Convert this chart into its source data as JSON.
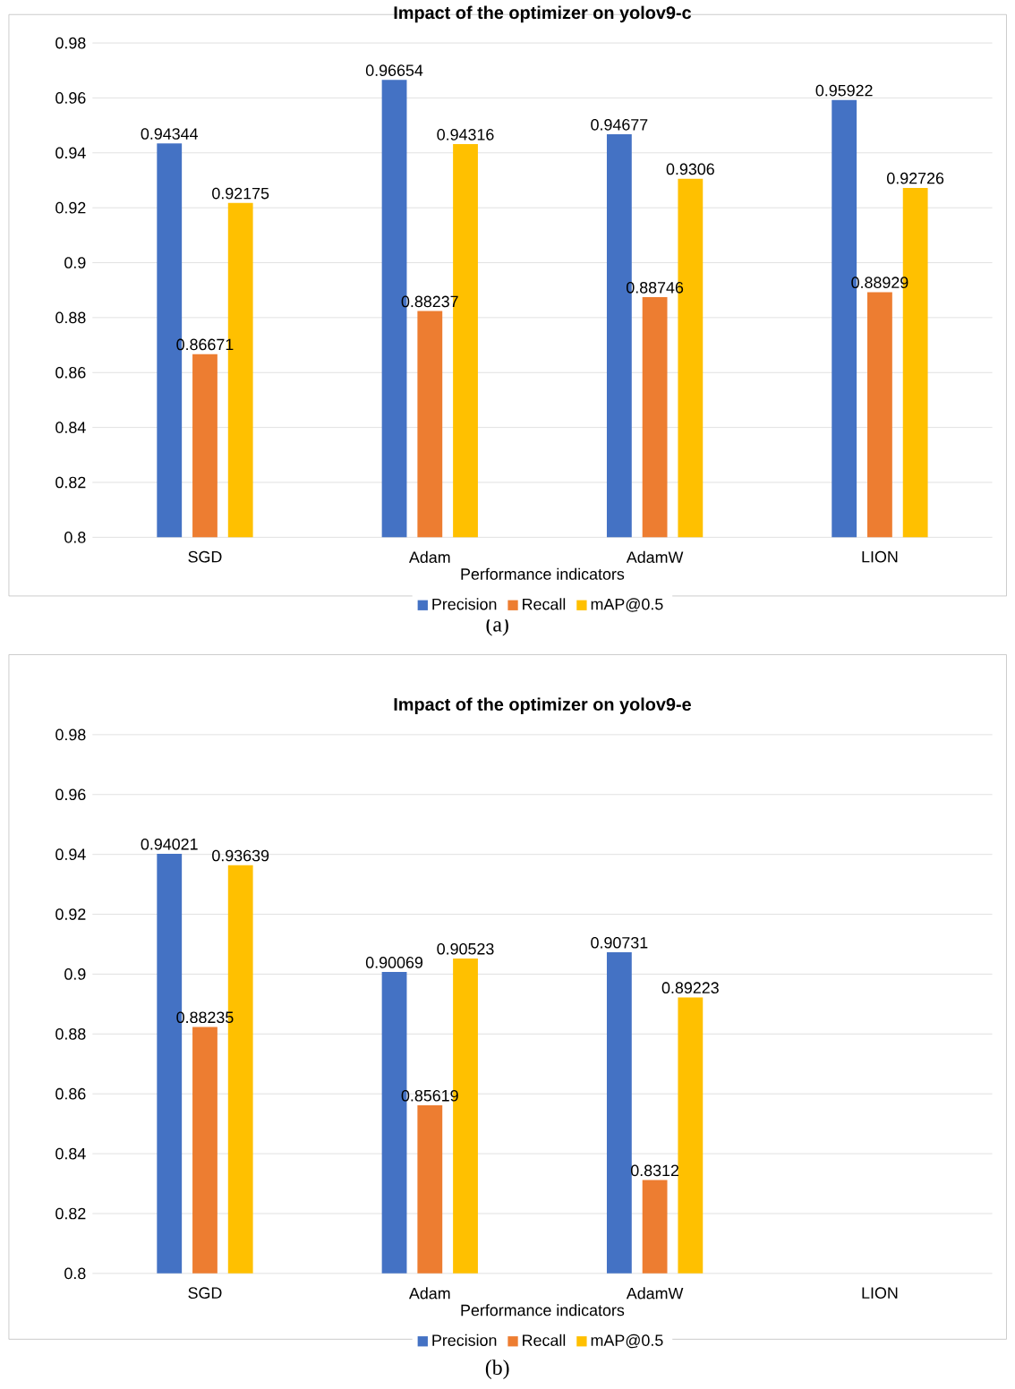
{
  "chart_data": [
    {
      "type": "bar",
      "title": "Impact of the optimizer on yolov9-c",
      "xlabel": "Performance indicators",
      "categories": [
        "SGD",
        "Adam",
        "AdamW",
        "LION"
      ],
      "series": [
        {
          "name": "Precision",
          "color": "#4472c4",
          "values": [
            0.94344,
            0.96654,
            0.94677,
            0.95922
          ]
        },
        {
          "name": "Recall",
          "color": "#ed7d31",
          "values": [
            0.86671,
            0.88237,
            0.88746,
            0.88929
          ]
        },
        {
          "name": "mAP@0.5",
          "color": "#ffc000",
          "values": [
            0.92175,
            0.94316,
            0.9306,
            0.92726
          ]
        }
      ],
      "ylim": [
        0.8,
        0.98
      ],
      "yticks": [
        0.8,
        0.82,
        0.84,
        0.86,
        0.88,
        0.9,
        0.92,
        0.94,
        0.96,
        0.98
      ],
      "grid": "y",
      "legend": "bottom",
      "data_labels": true,
      "annotations": [
        "(a)"
      ]
    },
    {
      "type": "bar",
      "title": "Impact of the optimizer on yolov9-e",
      "xlabel": "Performance indicators",
      "categories": [
        "SGD",
        "Adam",
        "AdamW",
        "LION"
      ],
      "series": [
        {
          "name": "Precision",
          "color": "#4472c4",
          "values": [
            0.94021,
            0.90069,
            0.90731,
            null
          ]
        },
        {
          "name": "Recall",
          "color": "#ed7d31",
          "values": [
            0.88235,
            0.85619,
            0.8312,
            null
          ]
        },
        {
          "name": "mAP@0.5",
          "color": "#ffc000",
          "values": [
            0.93639,
            0.90523,
            0.89223,
            null
          ]
        }
      ],
      "ylim": [
        0.8,
        0.98
      ],
      "yticks": [
        0.8,
        0.82,
        0.84,
        0.86,
        0.88,
        0.9,
        0.92,
        0.94,
        0.96,
        0.98
      ],
      "grid": "y",
      "legend": "bottom",
      "data_labels": true,
      "annotations": [
        "(b)"
      ]
    }
  ]
}
